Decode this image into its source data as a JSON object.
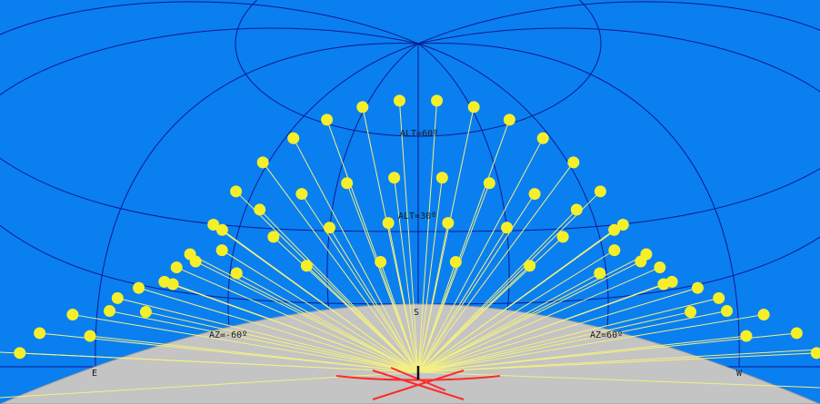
{
  "colors": {
    "sky": "#0a7ff0",
    "ground": "#c4c4c4",
    "grid": "#0c1a8f",
    "sun": "#f5ef2a",
    "ray": "#f3f083",
    "marker": "#ff2a2a",
    "label": "#1a1a1a"
  },
  "labels": {
    "alt_60": "ALT=60º",
    "alt_30": "ALT=30º",
    "az_east": "AZ=-60º",
    "az_west": "AZ=60º",
    "south": "S",
    "east": "E",
    "west": "W"
  },
  "sun_paths": [
    {
      "name": "upper-arc",
      "count": 16
    },
    {
      "name": "middle-arc",
      "count": 16
    },
    {
      "name": "lower-arc",
      "count": 16
    },
    {
      "name": "outer-arc",
      "count": 16
    }
  ]
}
